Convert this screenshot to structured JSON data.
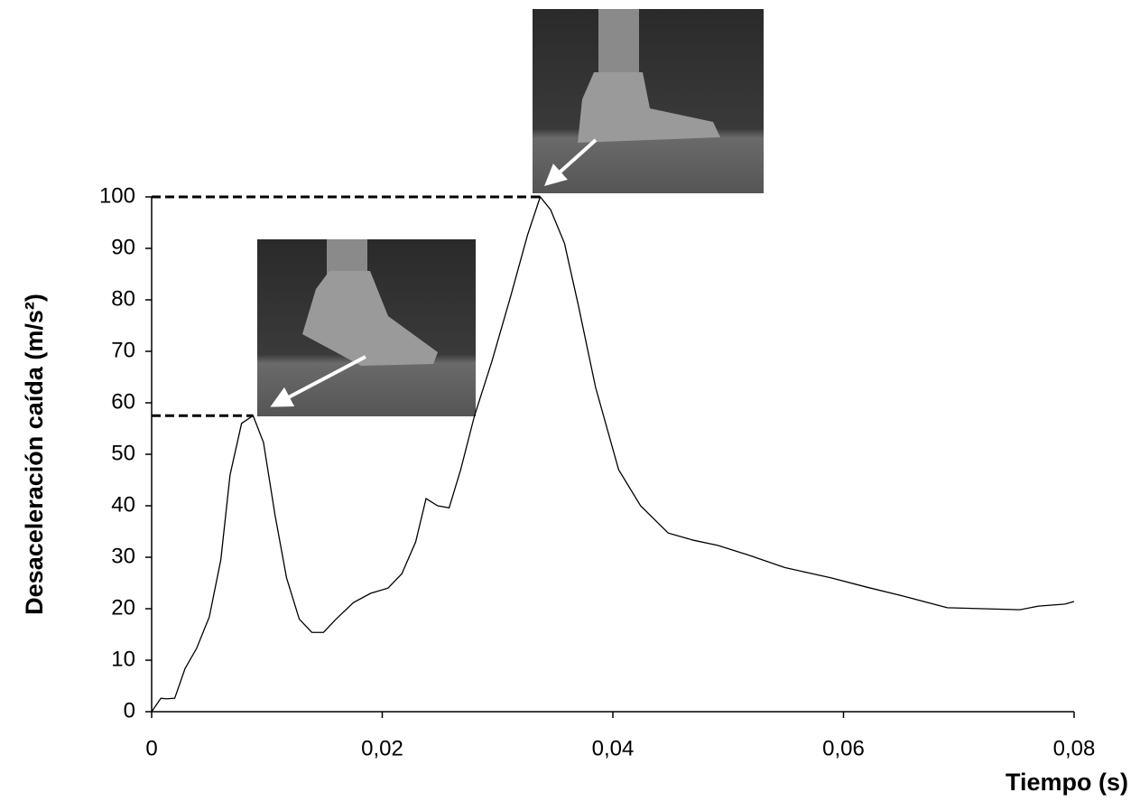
{
  "chart_data": {
    "type": "line",
    "x_label": "Tiempo (s)",
    "y_label": "Desaceleración caída (m/s²)",
    "x": [
      0,
      0.0008,
      0.0013,
      0.002,
      0.0029,
      0.0039,
      0.005,
      0.006,
      0.0068,
      0.0078,
      0.0088,
      0.0097,
      0.0107,
      0.0117,
      0.0128,
      0.0139,
      0.0149,
      0.016,
      0.0175,
      0.019,
      0.0205,
      0.0217,
      0.0229,
      0.0238,
      0.0248,
      0.0258,
      0.0268,
      0.028,
      0.0295,
      0.0311,
      0.0326,
      0.0337,
      0.0346,
      0.0358,
      0.037,
      0.0385,
      0.0405,
      0.0424,
      0.0448,
      0.047,
      0.0491,
      0.0518,
      0.0549,
      0.0589,
      0.062,
      0.0651,
      0.069,
      0.0753,
      0.0769,
      0.0792,
      0.08
    ],
    "series": [
      {
        "color": "#000000",
        "values": [
          0,
          2.6,
          2.5,
          2.6,
          8.4,
          12.3,
          18.4,
          29.5,
          46,
          56,
          57.5,
          52.3,
          38.2,
          26,
          18,
          15.4,
          15.4,
          18,
          21.2,
          23,
          24,
          26.8,
          33,
          41.4,
          40,
          39.6,
          47,
          57.5,
          68,
          80.4,
          92.6,
          100,
          97.5,
          91,
          79,
          63,
          47,
          40,
          34.7,
          33.3,
          32.3,
          30.4,
          28,
          26,
          24.2,
          22.5,
          20.2,
          19.8,
          20.5,
          20.9,
          21.4
        ]
      }
    ],
    "reference_lines": [
      57.5,
      100
    ],
    "xlim": [
      0,
      0.08
    ],
    "xticks": [
      0,
      {
        "value": 0.02,
        "label": "0,02"
      },
      {
        "value": 0.04,
        "label": "0,04"
      },
      {
        "value": 0.06,
        "label": "0,06"
      },
      {
        "value": 0.08,
        "label": "0,08"
      }
    ],
    "ylim": [
      0,
      100
    ],
    "yticks": [
      0,
      10,
      20,
      30,
      40,
      50,
      60,
      70,
      80,
      90,
      100
    ],
    "grid": false
  }
}
